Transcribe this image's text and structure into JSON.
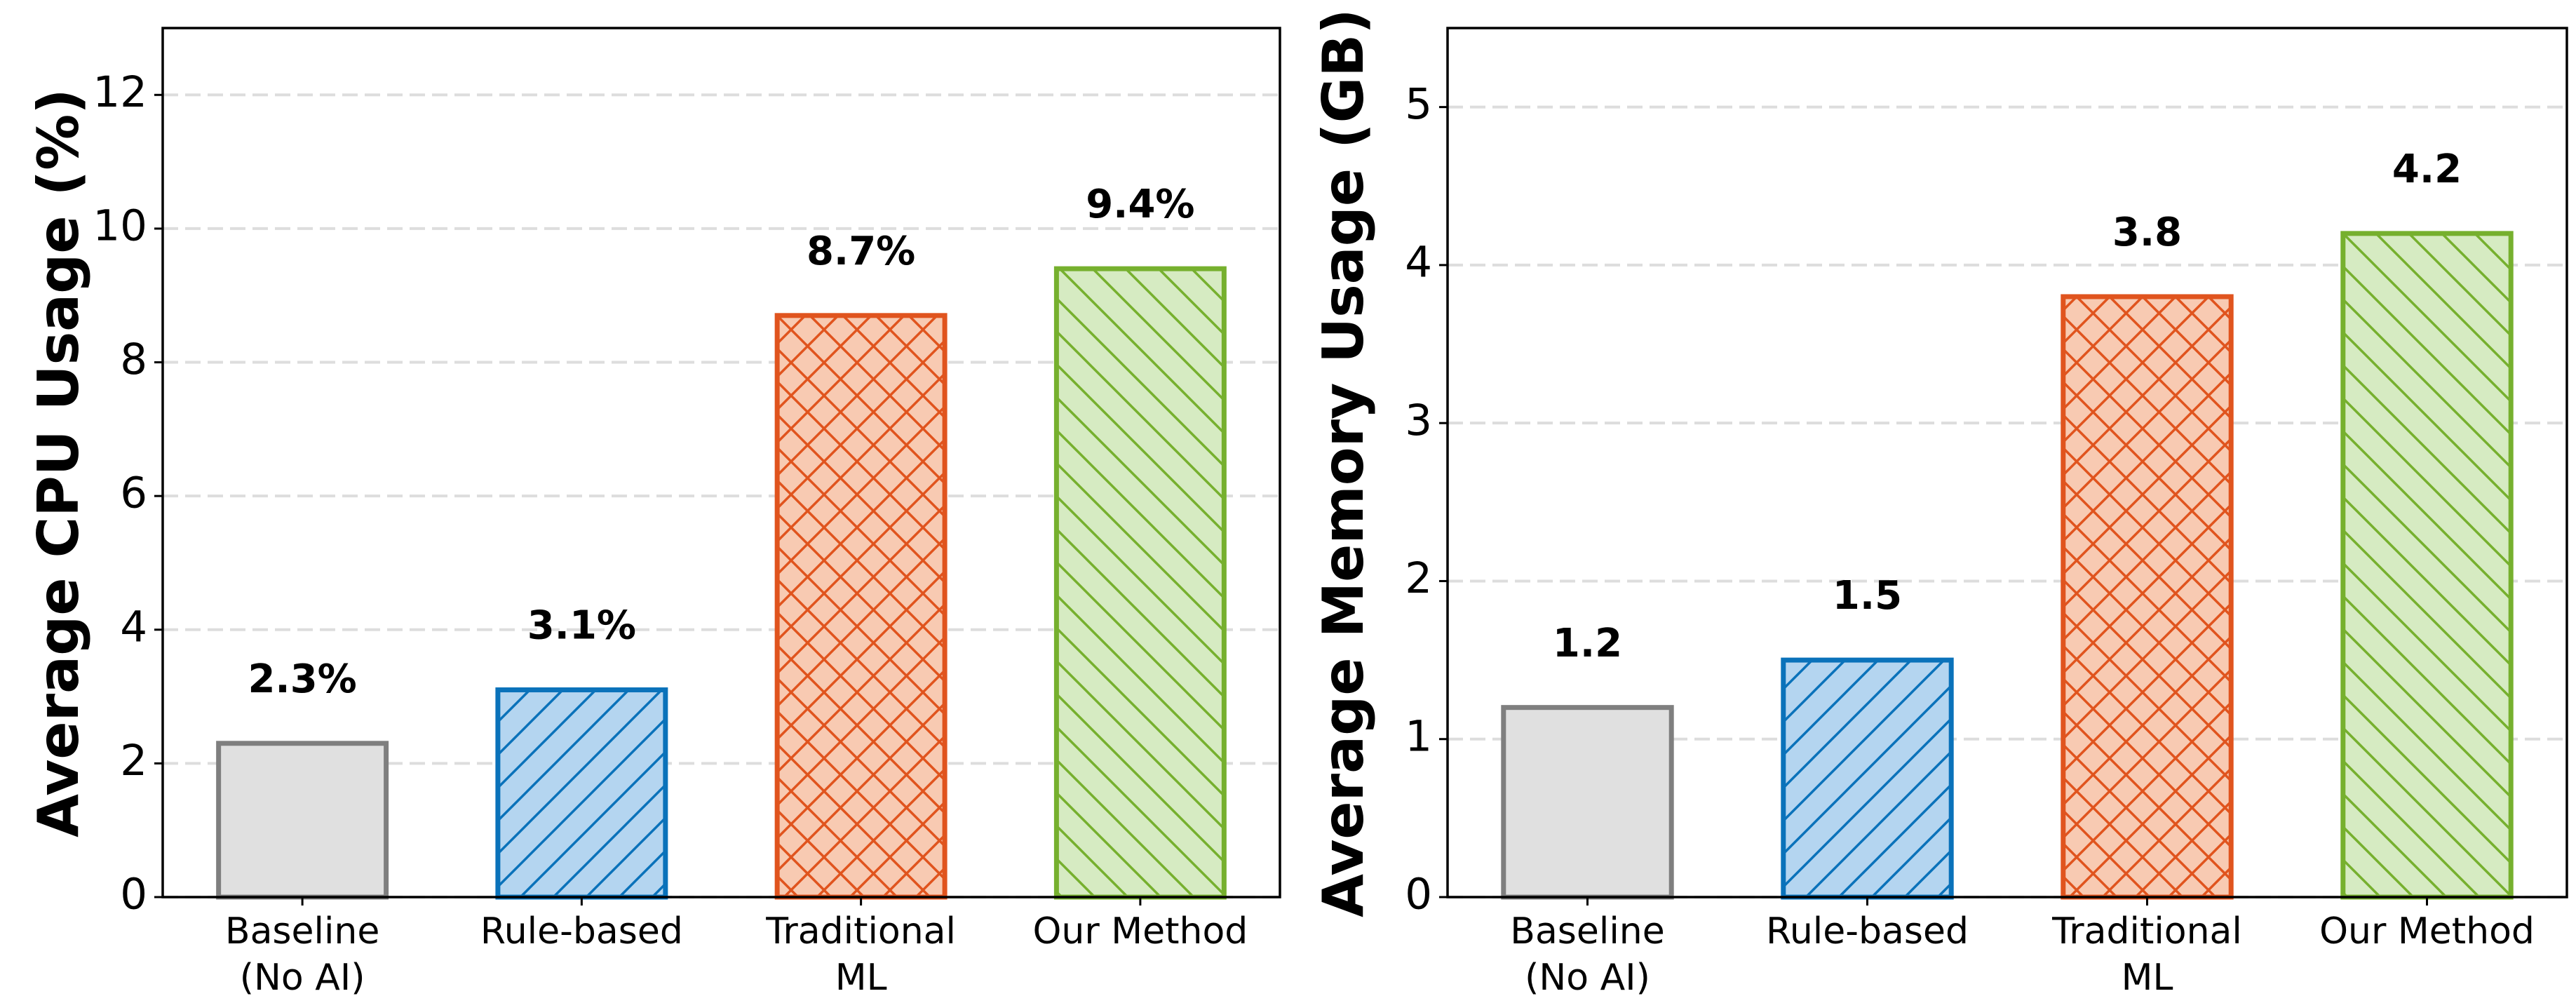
{
  "chart_data": [
    {
      "type": "bar",
      "ylabel": "Average CPU Usage (%)",
      "categories": [
        "Baseline\n(No AI)",
        "Rule-based",
        "Traditional\nML",
        "Our Method"
      ],
      "values": [
        2.3,
        3.1,
        8.7,
        9.4
      ],
      "value_labels": [
        "2.3%",
        "3.1%",
        "8.7%",
        "9.4%"
      ],
      "colors": [
        "#e0e0e0",
        "#b4d5f0",
        "#f8cab2",
        "#d6ebc2"
      ],
      "edge_colors": [
        "#7f7f7f",
        "#0a72ba",
        "#e0541e",
        "#76b02e"
      ],
      "hatches": [
        "none",
        "/",
        "x",
        "\\"
      ],
      "ylim": [
        0,
        13
      ],
      "yticks": [
        0,
        2,
        4,
        6,
        8,
        10,
        12
      ],
      "grid": true
    },
    {
      "type": "bar",
      "ylabel": "Average Memory Usage (GB)",
      "categories": [
        "Baseline\n(No AI)",
        "Rule-based",
        "Traditional\nML",
        "Our Method"
      ],
      "values": [
        1.2,
        1.5,
        3.8,
        4.2
      ],
      "colors": [
        "#e0e0e0",
        "#b4d5f0",
        "#f8cab2",
        "#d6ebc2"
      ],
      "edge_colors": [
        "#7f7f7f",
        "#0a72ba",
        "#e0541e",
        "#76b02e"
      ],
      "hatches": [
        "none",
        "/",
        "x",
        "\\"
      ],
      "ylim": [
        0,
        5.5
      ],
      "yticks": [
        0,
        1,
        2,
        3,
        4,
        5
      ],
      "grid": true
    }
  ]
}
